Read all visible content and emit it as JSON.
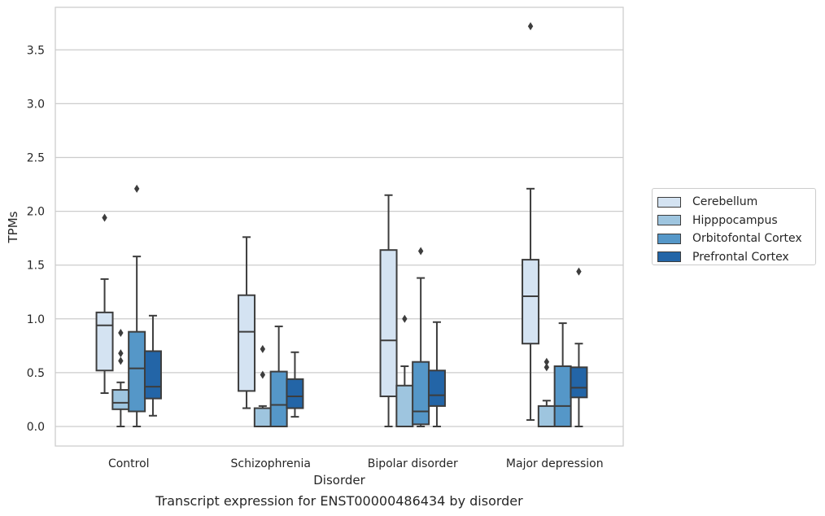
{
  "caption": "Transcript expression for ENST00000486434 by disorder",
  "chart_data": {
    "type": "box",
    "xlabel": "Disorder",
    "ylabel": "TPMs",
    "ylim": [
      -0.18,
      3.93
    ],
    "yticks": [
      0.0,
      0.5,
      1.0,
      1.5,
      2.0,
      2.5,
      3.0,
      3.5
    ],
    "ytick_labels": [
      "0.0",
      "0.5",
      "1.0",
      "1.5",
      "2.0",
      "2.5",
      "3.0",
      "3.5"
    ],
    "grid": "horizontal",
    "legend_position": "right",
    "categories": [
      "Control",
      "Schizophrenia",
      "Bipolar disorder",
      "Major depression"
    ],
    "series": [
      {
        "name": "Cerebellum",
        "color": "#d4e3f2",
        "boxes": [
          {
            "whislo": 0.31,
            "q1": 0.52,
            "med": 0.94,
            "q3": 1.06,
            "whishi": 1.37,
            "fliers": [
              1.94
            ]
          },
          {
            "whislo": 0.17,
            "q1": 0.33,
            "med": 0.88,
            "q3": 1.22,
            "whishi": 1.76,
            "fliers": []
          },
          {
            "whislo": 0.0,
            "q1": 0.28,
            "med": 0.8,
            "q3": 1.64,
            "whishi": 2.15,
            "fliers": []
          },
          {
            "whislo": 0.06,
            "q1": 0.77,
            "med": 1.21,
            "q3": 1.55,
            "whishi": 2.21,
            "fliers": [
              3.72
            ]
          }
        ]
      },
      {
        "name": "Hipppocampus",
        "color": "#9ec5df",
        "boxes": [
          {
            "whislo": 0.0,
            "q1": 0.16,
            "med": 0.22,
            "q3": 0.34,
            "whishi": 0.41,
            "fliers": [
              0.61,
              0.68,
              0.87
            ]
          },
          {
            "whislo": 0.0,
            "q1": 0.0,
            "med": 0.0,
            "q3": 0.17,
            "whishi": 0.19,
            "fliers": [
              0.48,
              0.72
            ]
          },
          {
            "whislo": 0.0,
            "q1": 0.0,
            "med": 0.0,
            "q3": 0.38,
            "whishi": 0.56,
            "fliers": [
              1.0
            ]
          },
          {
            "whislo": 0.0,
            "q1": 0.0,
            "med": 0.0,
            "q3": 0.19,
            "whishi": 0.24,
            "fliers": [
              0.55,
              0.6
            ]
          }
        ]
      },
      {
        "name": "Orbitofontal Cortex",
        "color": "#5597c8",
        "boxes": [
          {
            "whislo": 0.0,
            "q1": 0.14,
            "med": 0.54,
            "q3": 0.88,
            "whishi": 1.58,
            "fliers": [
              2.21
            ]
          },
          {
            "whislo": 0.0,
            "q1": 0.0,
            "med": 0.2,
            "q3": 0.51,
            "whishi": 0.93,
            "fliers": []
          },
          {
            "whislo": 0.0,
            "q1": 0.02,
            "med": 0.14,
            "q3": 0.6,
            "whishi": 1.38,
            "fliers": [
              1.63
            ]
          },
          {
            "whislo": 0.0,
            "q1": 0.0,
            "med": 0.19,
            "q3": 0.56,
            "whishi": 0.96,
            "fliers": []
          }
        ]
      },
      {
        "name": "Prefrontal Cortex",
        "color": "#2365a7",
        "boxes": [
          {
            "whislo": 0.1,
            "q1": 0.26,
            "med": 0.37,
            "q3": 0.7,
            "whishi": 1.03,
            "fliers": []
          },
          {
            "whislo": 0.09,
            "q1": 0.17,
            "med": 0.28,
            "q3": 0.44,
            "whishi": 0.69,
            "fliers": []
          },
          {
            "whislo": 0.0,
            "q1": 0.19,
            "med": 0.29,
            "q3": 0.52,
            "whishi": 0.97,
            "fliers": []
          },
          {
            "whislo": 0.0,
            "q1": 0.27,
            "med": 0.36,
            "q3": 0.55,
            "whishi": 0.77,
            "fliers": [
              1.44
            ]
          }
        ]
      }
    ]
  }
}
